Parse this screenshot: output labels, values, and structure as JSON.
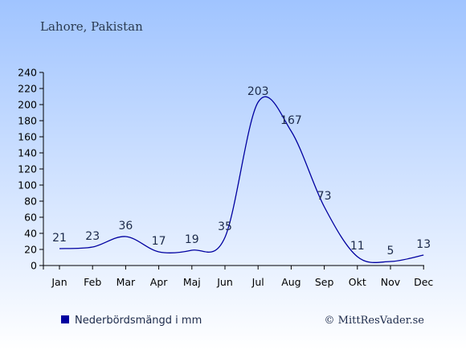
{
  "location": "Lahore, Pakistan",
  "legend_label": "Nederbördsmängd i mm",
  "copyright": "© MittResVader.se",
  "colors": {
    "series": "#0000a0",
    "background_top": "#a0c4ff",
    "background_bottom": "#ffffff",
    "text": "#1c2a4a",
    "header_text": "#2a3a50"
  },
  "chart_data": {
    "type": "line",
    "title": "",
    "xlabel": "",
    "ylabel": "",
    "categories": [
      "Jan",
      "Feb",
      "Mar",
      "Apr",
      "Maj",
      "Jun",
      "Jul",
      "Aug",
      "Sep",
      "Okt",
      "Nov",
      "Dec"
    ],
    "series": [
      {
        "name": "Nederbördsmängd i mm",
        "values": [
          21,
          23,
          36,
          17,
          19,
          35,
          203,
          167,
          73,
          11,
          5,
          13
        ]
      }
    ],
    "ylim": [
      0,
      240
    ],
    "yticks": [
      0,
      20,
      40,
      60,
      80,
      100,
      120,
      140,
      160,
      180,
      200,
      220,
      240
    ],
    "grid": false,
    "legend_position": "bottom-left"
  }
}
